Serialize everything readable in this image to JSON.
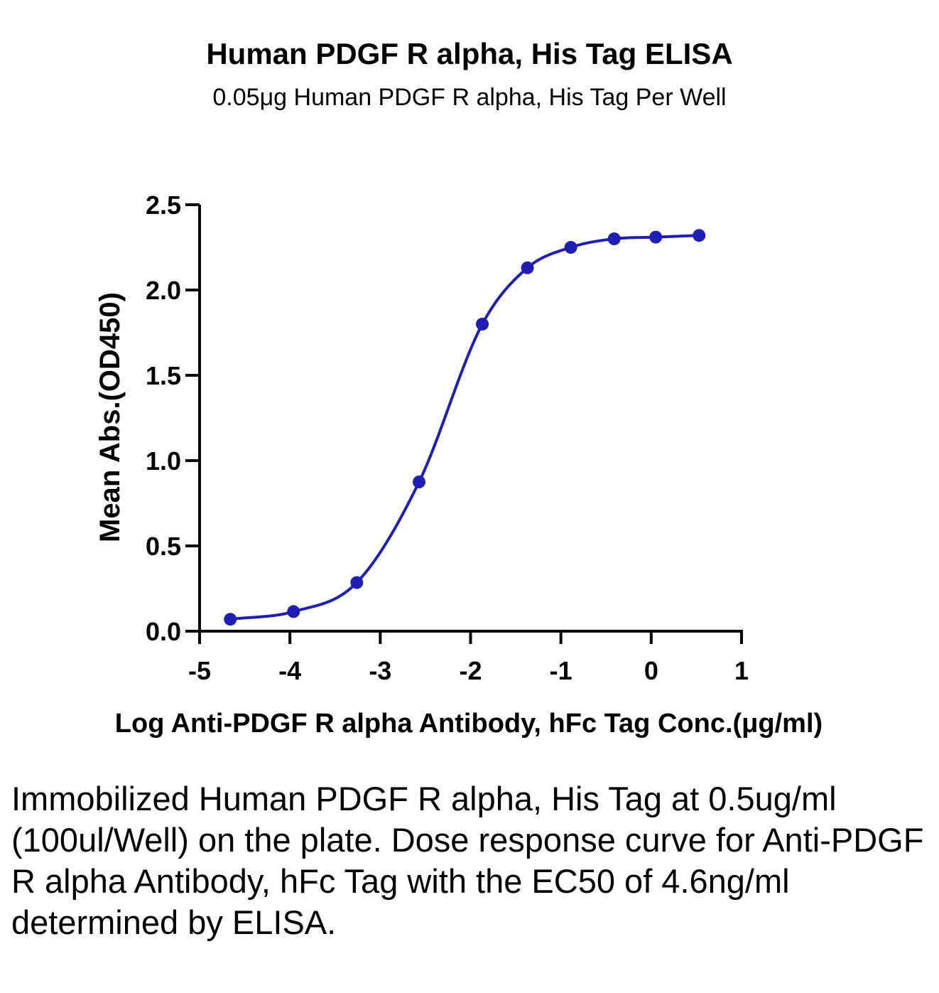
{
  "chart_data": {
    "type": "scatter",
    "title": "Human PDGF R alpha, His Tag ELISA",
    "subtitle": "0.05μg Human PDGF R alpha, His Tag Per Well",
    "xlabel": "Log Anti-PDGF R alpha Antibody, hFc Tag Conc.(μg/ml)",
    "ylabel": "Mean Abs.(OD450)",
    "xlim": [
      -5,
      1
    ],
    "ylim": [
      0,
      2.5
    ],
    "xticks": [
      "-5",
      "-4",
      "-3",
      "-2",
      "-1",
      "0",
      "1"
    ],
    "yticks": [
      "0.0",
      "0.5",
      "1.0",
      "1.5",
      "2.0",
      "2.5"
    ],
    "grid": false,
    "fit": "4PL sigmoid",
    "colors": {
      "series": "#1f1fb4"
    },
    "series": [
      {
        "x": [
          -4.66,
          -3.96,
          -3.26,
          -2.57,
          -1.87,
          -1.37,
          -0.89,
          -0.41,
          0.05,
          0.53
        ],
        "y": [
          0.07,
          0.115,
          0.285,
          0.875,
          1.8,
          2.13,
          2.25,
          2.3,
          2.31,
          2.32
        ]
      }
    ]
  },
  "caption": "Immobilized Human PDGF R alpha, His Tag at 0.5ug/ml (100ul/Well) on the plate. Dose response curve for Anti-PDGF R alpha Antibody, hFc Tag with the EC50 of 4.6ng/ml determined by ELISA."
}
